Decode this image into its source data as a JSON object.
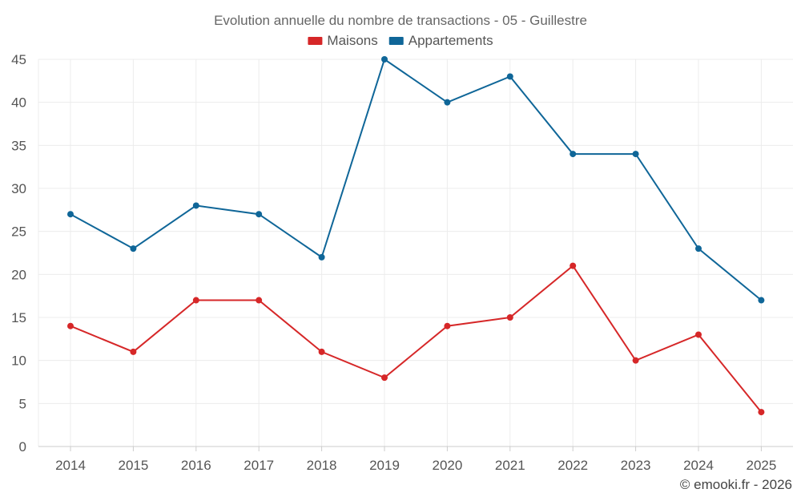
{
  "chart_data": {
    "type": "line",
    "title": "Evolution annuelle du nombre de transactions - 05 - Guillestre",
    "xlabel": "",
    "ylabel": "",
    "categories": [
      "2014",
      "2015",
      "2016",
      "2017",
      "2018",
      "2019",
      "2020",
      "2021",
      "2022",
      "2023",
      "2024",
      "2025"
    ],
    "ylim": [
      0,
      45
    ],
    "yticks": [
      "0",
      "5",
      "10",
      "15",
      "20",
      "25",
      "30",
      "35",
      "40",
      "45"
    ],
    "grid": true,
    "legend_position": "top-center",
    "series": [
      {
        "name": "Maisons",
        "color": "#d62728",
        "values": [
          14,
          11,
          17,
          17,
          11,
          8,
          14,
          15,
          21,
          10,
          13,
          4
        ]
      },
      {
        "name": "Appartements",
        "color": "#0f6698",
        "values": [
          27,
          23,
          28,
          27,
          22,
          45,
          40,
          43,
          34,
          34,
          23,
          17
        ]
      }
    ]
  },
  "credit": "© emooki.fr - 2026"
}
